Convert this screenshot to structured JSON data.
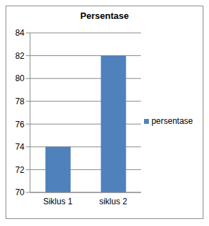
{
  "chart_data": {
    "type": "bar",
    "title": "Persentase",
    "categories": [
      "Siklus 1",
      "siklus 2"
    ],
    "series": [
      {
        "name": "persentase",
        "color": "#4f81bd",
        "values": [
          74,
          82
        ]
      }
    ],
    "ylim": [
      70,
      84
    ],
    "yticks": [
      70,
      72,
      74,
      76,
      78,
      80,
      82,
      84
    ],
    "grid": true,
    "legend": "right"
  }
}
